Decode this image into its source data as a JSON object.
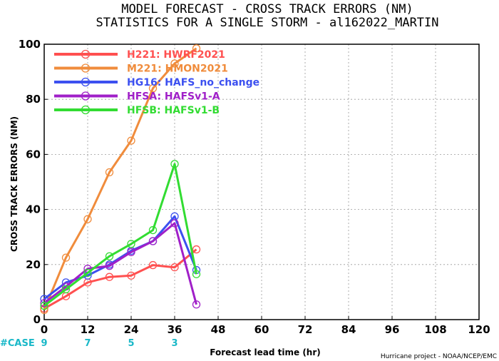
{
  "chart_data": {
    "type": "line",
    "title": "MODEL FORECAST - CROSS TRACK ERRORS (NM)",
    "subtitle": "STATISTICS FOR A SINGLE STORM - al162022_MARTIN",
    "xlabel": "Forecast lead time (hr)",
    "ylabel": "CROSS TRACK ERRORS (NM)",
    "xlim": [
      0,
      120
    ],
    "ylim": [
      0,
      100
    ],
    "x_ticks": [
      "0",
      "12",
      "24",
      "36",
      "48",
      "60",
      "72",
      "84",
      "96",
      "108",
      "120"
    ],
    "y_ticks": [
      "0",
      "20",
      "40",
      "60",
      "80",
      "100"
    ],
    "grid": true,
    "legend_position": "top-left",
    "series": [
      {
        "name": "H221: HWRF2021",
        "color": "#ff5050",
        "x": [
          0,
          6,
          12,
          18,
          24,
          30,
          36,
          42
        ],
        "values": [
          4.0,
          8.5,
          13.5,
          15.5,
          16.0,
          19.8,
          19.0,
          25.5
        ]
      },
      {
        "name": "M221: HMON2021",
        "color": "#f08c3c",
        "x": [
          0,
          6,
          12,
          18,
          24,
          30,
          36,
          42
        ],
        "values": [
          3.5,
          22.5,
          36.5,
          53.5,
          65.0,
          84.0,
          93.0,
          98.5
        ]
      },
      {
        "name": "HG16: HAFS_no_change",
        "color": "#3c50f0",
        "x": [
          0,
          6,
          12,
          18,
          24,
          30,
          36,
          42
        ],
        "values": [
          7.5,
          13.5,
          16.0,
          20.0,
          25.0,
          28.5,
          37.5,
          18.0
        ]
      },
      {
        "name": "HFSA: HAFSv1-A",
        "color": "#a020c8",
        "x": [
          0,
          6,
          12,
          18,
          24,
          30,
          36,
          42
        ],
        "values": [
          6.0,
          12.0,
          18.5,
          19.5,
          24.5,
          28.5,
          35.0,
          5.5
        ]
      },
      {
        "name": "HFSB: HAFSv1-B",
        "color": "#32dc32",
        "x": [
          0,
          6,
          12,
          18,
          24,
          30,
          36,
          42
        ],
        "values": [
          5.0,
          11.0,
          17.0,
          23.0,
          27.5,
          32.5,
          56.5,
          16.5
        ]
      }
    ],
    "cases": {
      "label": "#CASE",
      "x": [
        0,
        12,
        24,
        36
      ],
      "values": [
        "9",
        "7",
        "5",
        "3"
      ]
    },
    "credit": "Hurricane project - NOAA/NCEP/EMC"
  }
}
